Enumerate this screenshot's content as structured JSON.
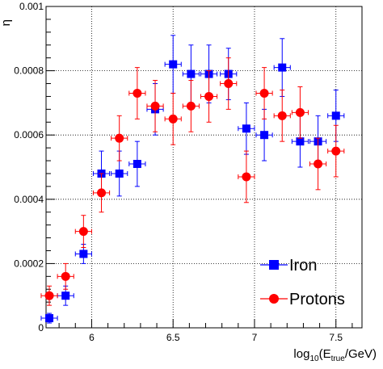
{
  "chart_data": {
    "type": "scatter",
    "ylabel": "η",
    "xlabel": {
      "base": "log",
      "sub1": "10",
      "open": "(E",
      "sub2": "true",
      "close": "/GeV)"
    },
    "xlim": [
      5.72,
      7.66
    ],
    "ylim": [
      0,
      0.001
    ],
    "xticks": [
      6,
      6.5,
      7,
      7.5
    ],
    "xtick_labels": [
      "6",
      "6.5",
      "7",
      "7.5"
    ],
    "yticks": [
      0,
      0.0002,
      0.0004,
      0.0006,
      0.0008,
      0.001
    ],
    "ytick_labels": [
      "0",
      "0.0002",
      "0.0004",
      "0.0006",
      "0.0008",
      "0.001"
    ],
    "grid": true,
    "legend_position": "bottom-right",
    "series": [
      {
        "name": "Iron",
        "color": "#0000ff",
        "marker": "square",
        "x": [
          5.74,
          5.84,
          5.95,
          6.06,
          6.17,
          6.28,
          6.39,
          6.5,
          6.61,
          6.72,
          6.84,
          6.95,
          7.06,
          7.17,
          7.28,
          7.39,
          7.5
        ],
        "y": [
          3e-05,
          0.0001,
          0.00023,
          0.00048,
          0.00048,
          0.00051,
          0.00068,
          0.00082,
          0.00079,
          0.00079,
          0.00079,
          0.00062,
          0.0006,
          0.00081,
          0.00058,
          0.00058,
          0.00066
        ],
        "yerr": [
          1.5e-05,
          3e-05,
          3e-05,
          7e-05,
          7e-05,
          7e-05,
          8e-05,
          9e-05,
          9e-05,
          9e-05,
          8e-05,
          8e-05,
          8e-05,
          9e-05,
          8e-05,
          8e-05,
          8e-05
        ],
        "xerr": 0.05
      },
      {
        "name": "Protons",
        "color": "#ff0000",
        "marker": "circle",
        "x": [
          5.74,
          5.84,
          5.95,
          6.06,
          6.17,
          6.28,
          6.39,
          6.5,
          6.61,
          6.72,
          6.84,
          6.95,
          7.06,
          7.17,
          7.28,
          7.39,
          7.5
        ],
        "y": [
          0.0001,
          0.00016,
          0.0003,
          0.00042,
          0.00059,
          0.00073,
          0.00069,
          0.00065,
          0.00069,
          0.00072,
          0.00076,
          0.00047,
          0.00073,
          0.00066,
          0.00067,
          0.00051,
          0.00055
        ],
        "yerr": [
          3e-05,
          4e-05,
          5e-05,
          6e-05,
          7e-05,
          8e-05,
          8e-05,
          8e-05,
          8e-05,
          8e-05,
          8e-05,
          8e-05,
          8e-05,
          8e-05,
          8e-05,
          8e-05,
          8e-05
        ],
        "xerr": 0.05
      }
    ]
  }
}
